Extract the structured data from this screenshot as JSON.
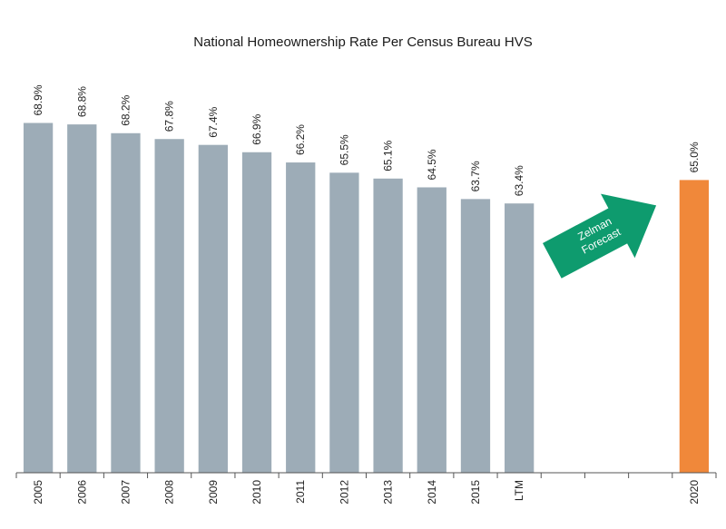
{
  "chart_data": {
    "type": "bar",
    "title": "National Homeownership Rate Per Census Bureau HVS",
    "xlabel": "",
    "ylabel": "",
    "ylim": [
      45,
      70
    ],
    "grid": false,
    "categories": [
      "2005",
      "2006",
      "2007",
      "2008",
      "2009",
      "2010",
      "2011",
      "2012",
      "2013",
      "2014",
      "2015",
      "LTM",
      "",
      "",
      "",
      "2020"
    ],
    "values": [
      68.9,
      68.8,
      68.2,
      67.8,
      67.4,
      66.9,
      66.2,
      65.5,
      65.1,
      64.5,
      63.7,
      63.4,
      null,
      null,
      null,
      65.0
    ],
    "data_labels": [
      "68.9%",
      "68.8%",
      "68.2%",
      "67.8%",
      "67.4%",
      "66.9%",
      "66.2%",
      "65.5%",
      "65.1%",
      "64.5%",
      "63.7%",
      "63.4%",
      "",
      "",
      "",
      "65.0%"
    ],
    "bar_colors": [
      "#9dacb7",
      "#9dacb7",
      "#9dacb7",
      "#9dacb7",
      "#9dacb7",
      "#9dacb7",
      "#9dacb7",
      "#9dacb7",
      "#9dacb7",
      "#9dacb7",
      "#9dacb7",
      "#9dacb7",
      "",
      "",
      "",
      "#f0883a"
    ],
    "annotation": {
      "lines": [
        "Zelman",
        "Forecast"
      ],
      "color": "#0e9b6e",
      "shape": "arrow"
    }
  }
}
